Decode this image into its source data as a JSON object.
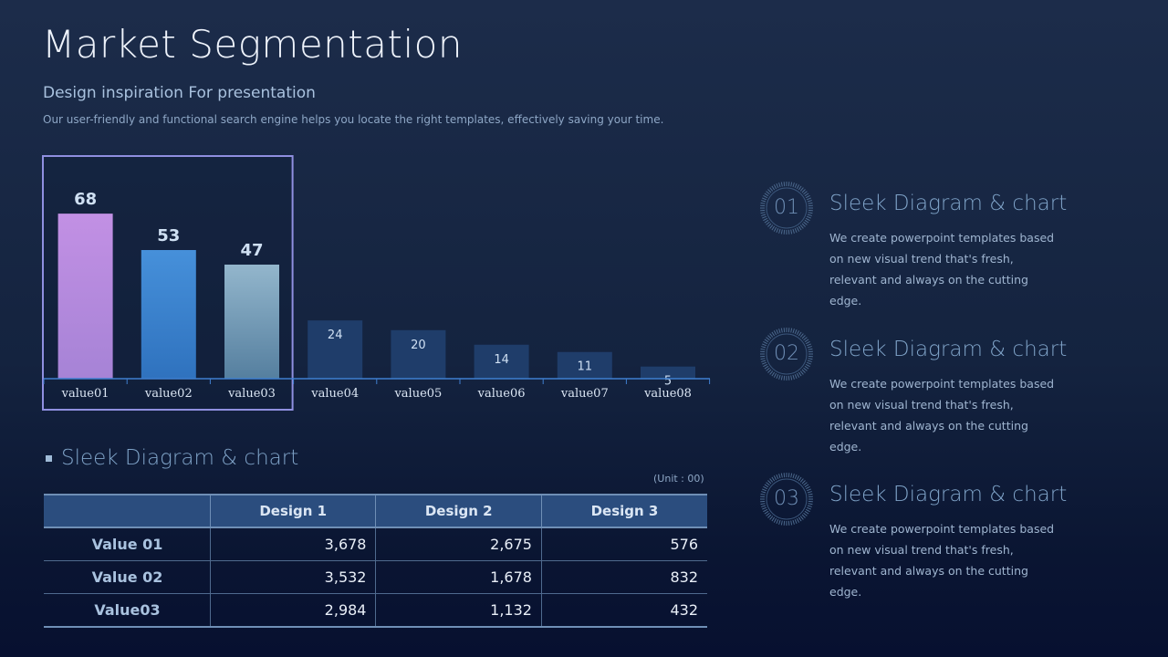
{
  "header": {
    "title": "Market Segmentation",
    "subtitle": "Design inspiration For presentation",
    "description": "Our user-friendly and functional search engine helps you locate the right templates, effectively saving your time."
  },
  "chart_data": {
    "type": "bar",
    "categories": [
      "value01",
      "value02",
      "value03",
      "value04",
      "value05",
      "value06",
      "value07",
      "value08"
    ],
    "values": [
      68,
      53,
      47,
      24,
      20,
      14,
      11,
      5
    ],
    "highlighted_count": 3,
    "bar_colors": [
      "#b98be0",
      "#3f86d1",
      "#7fa4bd",
      "#1f3d6a",
      "#1f3d6a",
      "#1f3d6a",
      "#1f3d6a",
      "#1f3d6a"
    ],
    "highlight_border_color": "#8f8fe0",
    "axis_color": "#3f7fd0",
    "title": "",
    "xlabel": "",
    "ylabel": "",
    "ylim": [
      0,
      70
    ],
    "grid": false
  },
  "table_section": {
    "title": "Sleek Diagram & chart",
    "unit": "(Unit : 00)",
    "columns": [
      "",
      "Design 1",
      "Design 2",
      "Design 3"
    ],
    "rows": [
      {
        "label": "Value 01",
        "cells": [
          "3,678",
          "2,675",
          "576"
        ]
      },
      {
        "label": "Value 02",
        "cells": [
          "3,532",
          "1,678",
          "832"
        ]
      },
      {
        "label": "Value03",
        "cells": [
          "2,984",
          "1,132",
          "432"
        ]
      }
    ]
  },
  "features": [
    {
      "number": "01",
      "title": "Sleek Diagram & chart",
      "body": "We create powerpoint templates based on new visual trend that's fresh, relevant and always on the cutting edge."
    },
    {
      "number": "02",
      "title": "Sleek Diagram & chart",
      "body": "We create powerpoint templates based on new visual trend that's fresh, relevant and always on the cutting edge."
    },
    {
      "number": "03",
      "title": "Sleek Diagram & chart",
      "body": "We create powerpoint templates based on new visual trend that's fresh, relevant and always on the cutting edge."
    }
  ],
  "colors": {
    "accent_blue": "#3f86d1",
    "accent_purple": "#b98be0",
    "text_muted": "#7fa3c8"
  }
}
